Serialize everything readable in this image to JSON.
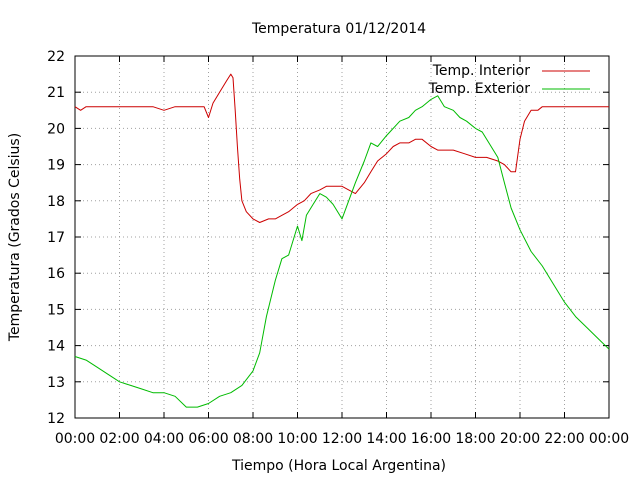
{
  "chart_data": {
    "type": "line",
    "title": "Temperatura 01/12/2014",
    "xlabel": "Tiempo (Hora Local Argentina)",
    "ylabel": "Temperatura (Grados Celsius)",
    "xlim": [
      0,
      24
    ],
    "ylim": [
      12,
      22
    ],
    "x_tick_labels": [
      "00:00",
      "02:00",
      "04:00",
      "06:00",
      "08:00",
      "10:00",
      "12:00",
      "14:00",
      "16:00",
      "18:00",
      "20:00",
      "22:00",
      "00:00"
    ],
    "y_tick_labels": [
      "12",
      "13",
      "14",
      "15",
      "16",
      "17",
      "18",
      "19",
      "20",
      "21",
      "22"
    ],
    "grid": true,
    "legend_position": "top-right",
    "series": [
      {
        "name": "Temp. Interior",
        "color": "#cc0000",
        "x": [
          0,
          0.25,
          0.5,
          1,
          2,
          3,
          3.5,
          4,
          4.5,
          5,
          5.5,
          5.8,
          6.0,
          6.2,
          6.5,
          6.8,
          7.0,
          7.1,
          7.2,
          7.3,
          7.4,
          7.5,
          7.7,
          8.0,
          8.3,
          8.7,
          9.0,
          9.3,
          9.6,
          10.0,
          10.3,
          10.6,
          11.0,
          11.3,
          11.6,
          12.0,
          12.3,
          12.6,
          13.0,
          13.3,
          13.6,
          14.0,
          14.3,
          14.6,
          15.0,
          15.3,
          15.6,
          16.0,
          16.3,
          16.6,
          17.0,
          17.5,
          18.0,
          18.5,
          19.0,
          19.3,
          19.6,
          19.8,
          20.0,
          20.2,
          20.5,
          20.8,
          21.0,
          21.5,
          22.0,
          23.0,
          24.0
        ],
        "y": [
          20.6,
          20.5,
          20.6,
          20.6,
          20.6,
          20.6,
          20.6,
          20.5,
          20.6,
          20.6,
          20.6,
          20.6,
          20.3,
          20.7,
          21.0,
          21.3,
          21.5,
          21.4,
          20.5,
          19.5,
          18.6,
          18.0,
          17.7,
          17.5,
          17.4,
          17.5,
          17.5,
          17.6,
          17.7,
          17.9,
          18.0,
          18.2,
          18.3,
          18.4,
          18.4,
          18.4,
          18.3,
          18.2,
          18.5,
          18.8,
          19.1,
          19.3,
          19.5,
          19.6,
          19.6,
          19.7,
          19.7,
          19.5,
          19.4,
          19.4,
          19.4,
          19.3,
          19.2,
          19.2,
          19.1,
          19.0,
          18.8,
          18.8,
          19.7,
          20.2,
          20.5,
          20.5,
          20.6,
          20.6,
          20.6,
          20.6,
          20.6
        ]
      },
      {
        "name": "Temp. Exterior",
        "color": "#00bb00",
        "x": [
          0,
          0.5,
          1,
          1.5,
          2,
          2.5,
          3,
          3.5,
          4,
          4.5,
          5,
          5.5,
          6,
          6.5,
          7,
          7.5,
          8,
          8.3,
          8.6,
          9,
          9.3,
          9.6,
          10,
          10.2,
          10.4,
          10.7,
          11,
          11.3,
          11.6,
          12,
          12.3,
          12.6,
          13,
          13.3,
          13.6,
          14,
          14.3,
          14.6,
          15,
          15.3,
          15.6,
          16,
          16.3,
          16.6,
          17,
          17.3,
          17.6,
          18,
          18.3,
          18.6,
          19,
          19.3,
          19.6,
          20,
          20.5,
          21,
          21.5,
          22,
          22.5,
          23,
          23.5,
          24
        ],
        "y": [
          13.7,
          13.6,
          13.4,
          13.2,
          13.0,
          12.9,
          12.8,
          12.7,
          12.7,
          12.6,
          12.3,
          12.3,
          12.4,
          12.6,
          12.7,
          12.9,
          13.3,
          13.8,
          14.8,
          15.8,
          16.4,
          16.5,
          17.3,
          16.9,
          17.6,
          17.9,
          18.2,
          18.1,
          17.9,
          17.5,
          18.0,
          18.5,
          19.1,
          19.6,
          19.5,
          19.8,
          20.0,
          20.2,
          20.3,
          20.5,
          20.6,
          20.8,
          20.9,
          20.6,
          20.5,
          20.3,
          20.2,
          20.0,
          19.9,
          19.6,
          19.2,
          18.5,
          17.8,
          17.2,
          16.6,
          16.2,
          15.7,
          15.2,
          14.8,
          14.5,
          14.2,
          13.9
        ]
      }
    ]
  }
}
